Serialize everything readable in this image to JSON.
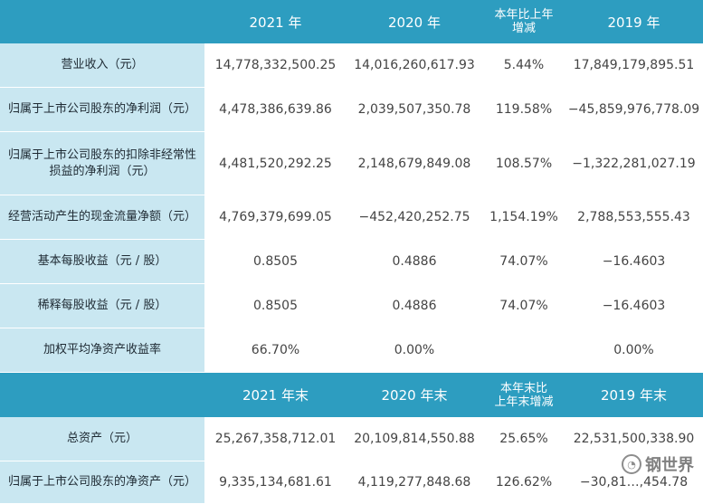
{
  "header1": {
    "blank": "",
    "col1": "2021 年",
    "col2": "2020 年",
    "col3_line1": "本年比上年",
    "col3_line2": "增减",
    "col4": "2019 年"
  },
  "rows1": [
    {
      "label": "营业收入（元）",
      "v2021": "14,778,332,500.25",
      "v2020": "14,016,260,617.93",
      "change": "5.44%",
      "v2019": "17,849,179,895.51"
    },
    {
      "label": "归属于上市公司股东的净利润（元）",
      "v2021": "4,478,386,639.86",
      "v2020": "2,039,507,350.78",
      "change": "119.58%",
      "v2019": "−45,859,976,778.09"
    },
    {
      "label": "归属于上市公司股东的扣除非经常性损益的净利润（元）",
      "v2021": "4,481,520,292.25",
      "v2020": "2,148,679,849.08",
      "change": "108.57%",
      "v2019": "−1,322,281,027.19"
    },
    {
      "label": "经营活动产生的现金流量净额（元）",
      "v2021": "4,769,379,699.05",
      "v2020": "−452,420,252.75",
      "change": "1,154.19%",
      "v2019": "2,788,553,555.43"
    },
    {
      "label": "基本每股收益（元 / 股）",
      "v2021": "0.8505",
      "v2020": "0.4886",
      "change": "74.07%",
      "v2019": "−16.4603"
    },
    {
      "label": "稀释每股收益（元 / 股）",
      "v2021": "0.8505",
      "v2020": "0.4886",
      "change": "74.07%",
      "v2019": "−16.4603"
    },
    {
      "label": "加权平均净资产收益率",
      "v2021": "66.70%",
      "v2020": "0.00%",
      "change": "",
      "v2019": "0.00%"
    }
  ],
  "header2": {
    "blank": "",
    "col1": "2021 年末",
    "col2": "2020 年末",
    "col3_line1": "本年末比",
    "col3_line2": "上年末增减",
    "col4": "2019 年末"
  },
  "rows2": [
    {
      "label": "总资产（元）",
      "v2021": "25,267,358,712.01",
      "v2020": "20,109,814,550.88",
      "change": "25.65%",
      "v2019": "22,531,500,338.90"
    },
    {
      "label": "归属于上市公司股东的净资产（元）",
      "v2021": "9,335,134,681.61",
      "v2020": "4,119,277,848.68",
      "change": "126.62%",
      "v2019": "−30,81…,454.78"
    }
  ],
  "watermark": {
    "text": "钢世界",
    "icon": "wechat-logo-icon"
  },
  "colors": {
    "header": "#2d9dc0",
    "label_bg": "#c9e7f1"
  }
}
